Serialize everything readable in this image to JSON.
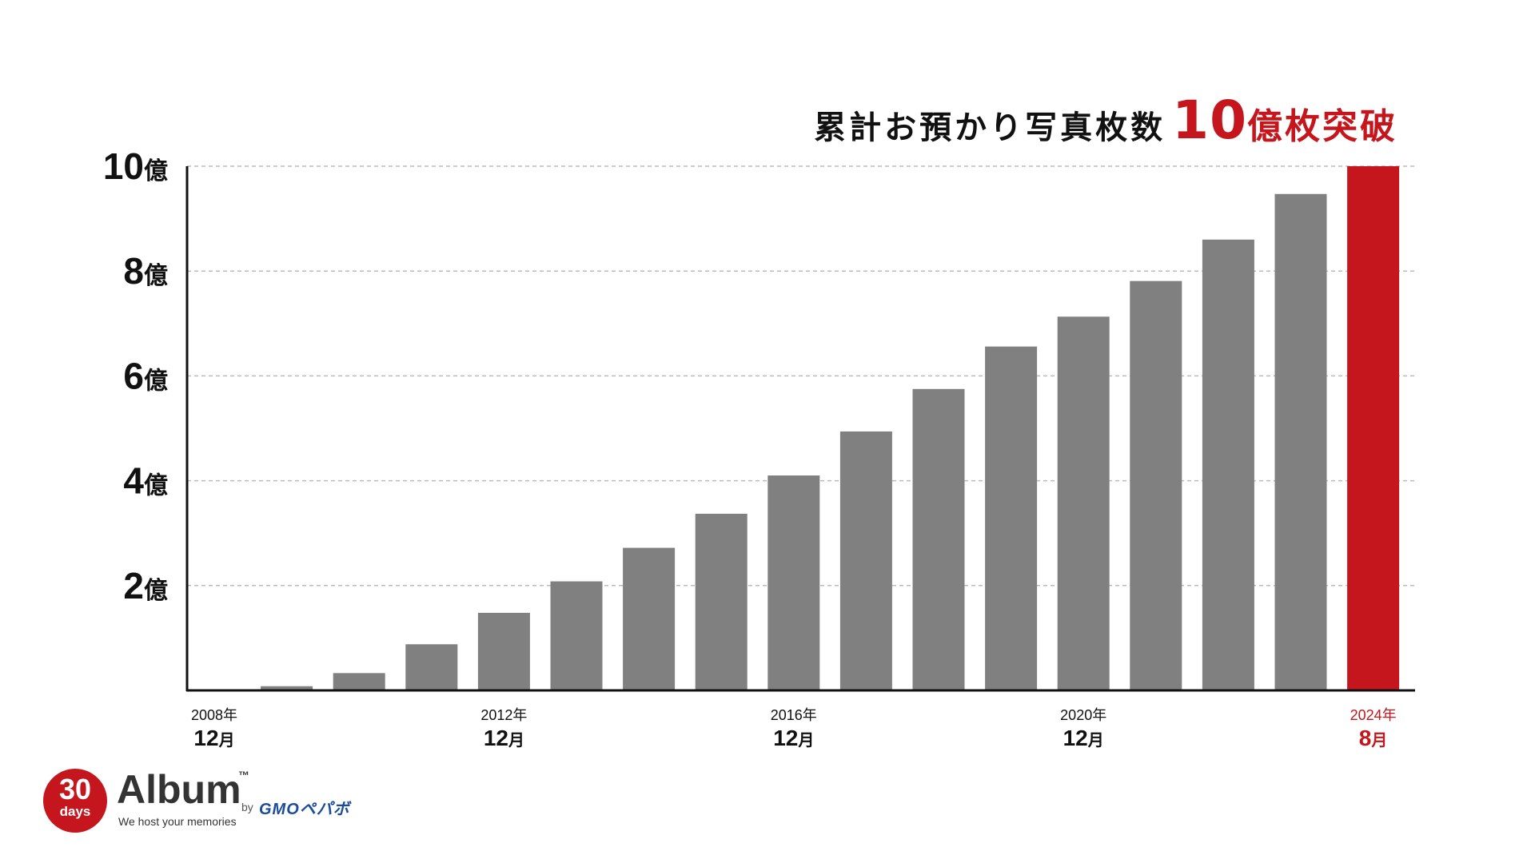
{
  "title": {
    "main": "累計お預かり写真枚数",
    "number": "10",
    "tail": "億枚突破"
  },
  "colors": {
    "bar": "#808080",
    "highlight": "#c4161c",
    "axis": "#111111",
    "grid": "#bbbbbb",
    "text": "#111111"
  },
  "chart_data": {
    "type": "bar",
    "title": "累計お預かり写真枚数10億枚突破",
    "xlabel": "",
    "ylabel": "",
    "unit": "億",
    "ylim": [
      0,
      10
    ],
    "grid": true,
    "y_ticks": [
      {
        "value": 2,
        "num": "2",
        "unit": "億"
      },
      {
        "value": 4,
        "num": "4",
        "unit": "億"
      },
      {
        "value": 6,
        "num": "6",
        "unit": "億"
      },
      {
        "value": 8,
        "num": "8",
        "unit": "億"
      },
      {
        "value": 10,
        "num": "10",
        "unit": "億"
      }
    ],
    "x_tick_labels": [
      {
        "index": 0,
        "year": "2008年",
        "month_num": "12",
        "month_unit": "月",
        "highlight": false
      },
      {
        "index": 4,
        "year": "2012年",
        "month_num": "12",
        "month_unit": "月",
        "highlight": false
      },
      {
        "index": 8,
        "year": "2016年",
        "month_num": "12",
        "month_unit": "月",
        "highlight": false
      },
      {
        "index": 12,
        "year": "2020年",
        "month_num": "12",
        "month_unit": "月",
        "highlight": false
      },
      {
        "index": 16,
        "year": "2024年",
        "month_num": "8",
        "month_unit": "月",
        "highlight": true
      }
    ],
    "values": [
      0,
      0.08,
      0.33,
      0.88,
      1.48,
      2.08,
      2.72,
      3.37,
      4.1,
      4.94,
      5.75,
      6.56,
      7.13,
      7.81,
      8.6,
      9.47,
      10.0
    ],
    "highlight_index": 16
  },
  "logo": {
    "circle_number": "30",
    "circle_text": "days",
    "name": "Album",
    "trademark": "™",
    "tagline": "We host your memories",
    "by": "by",
    "partner": "GMOペパボ"
  }
}
